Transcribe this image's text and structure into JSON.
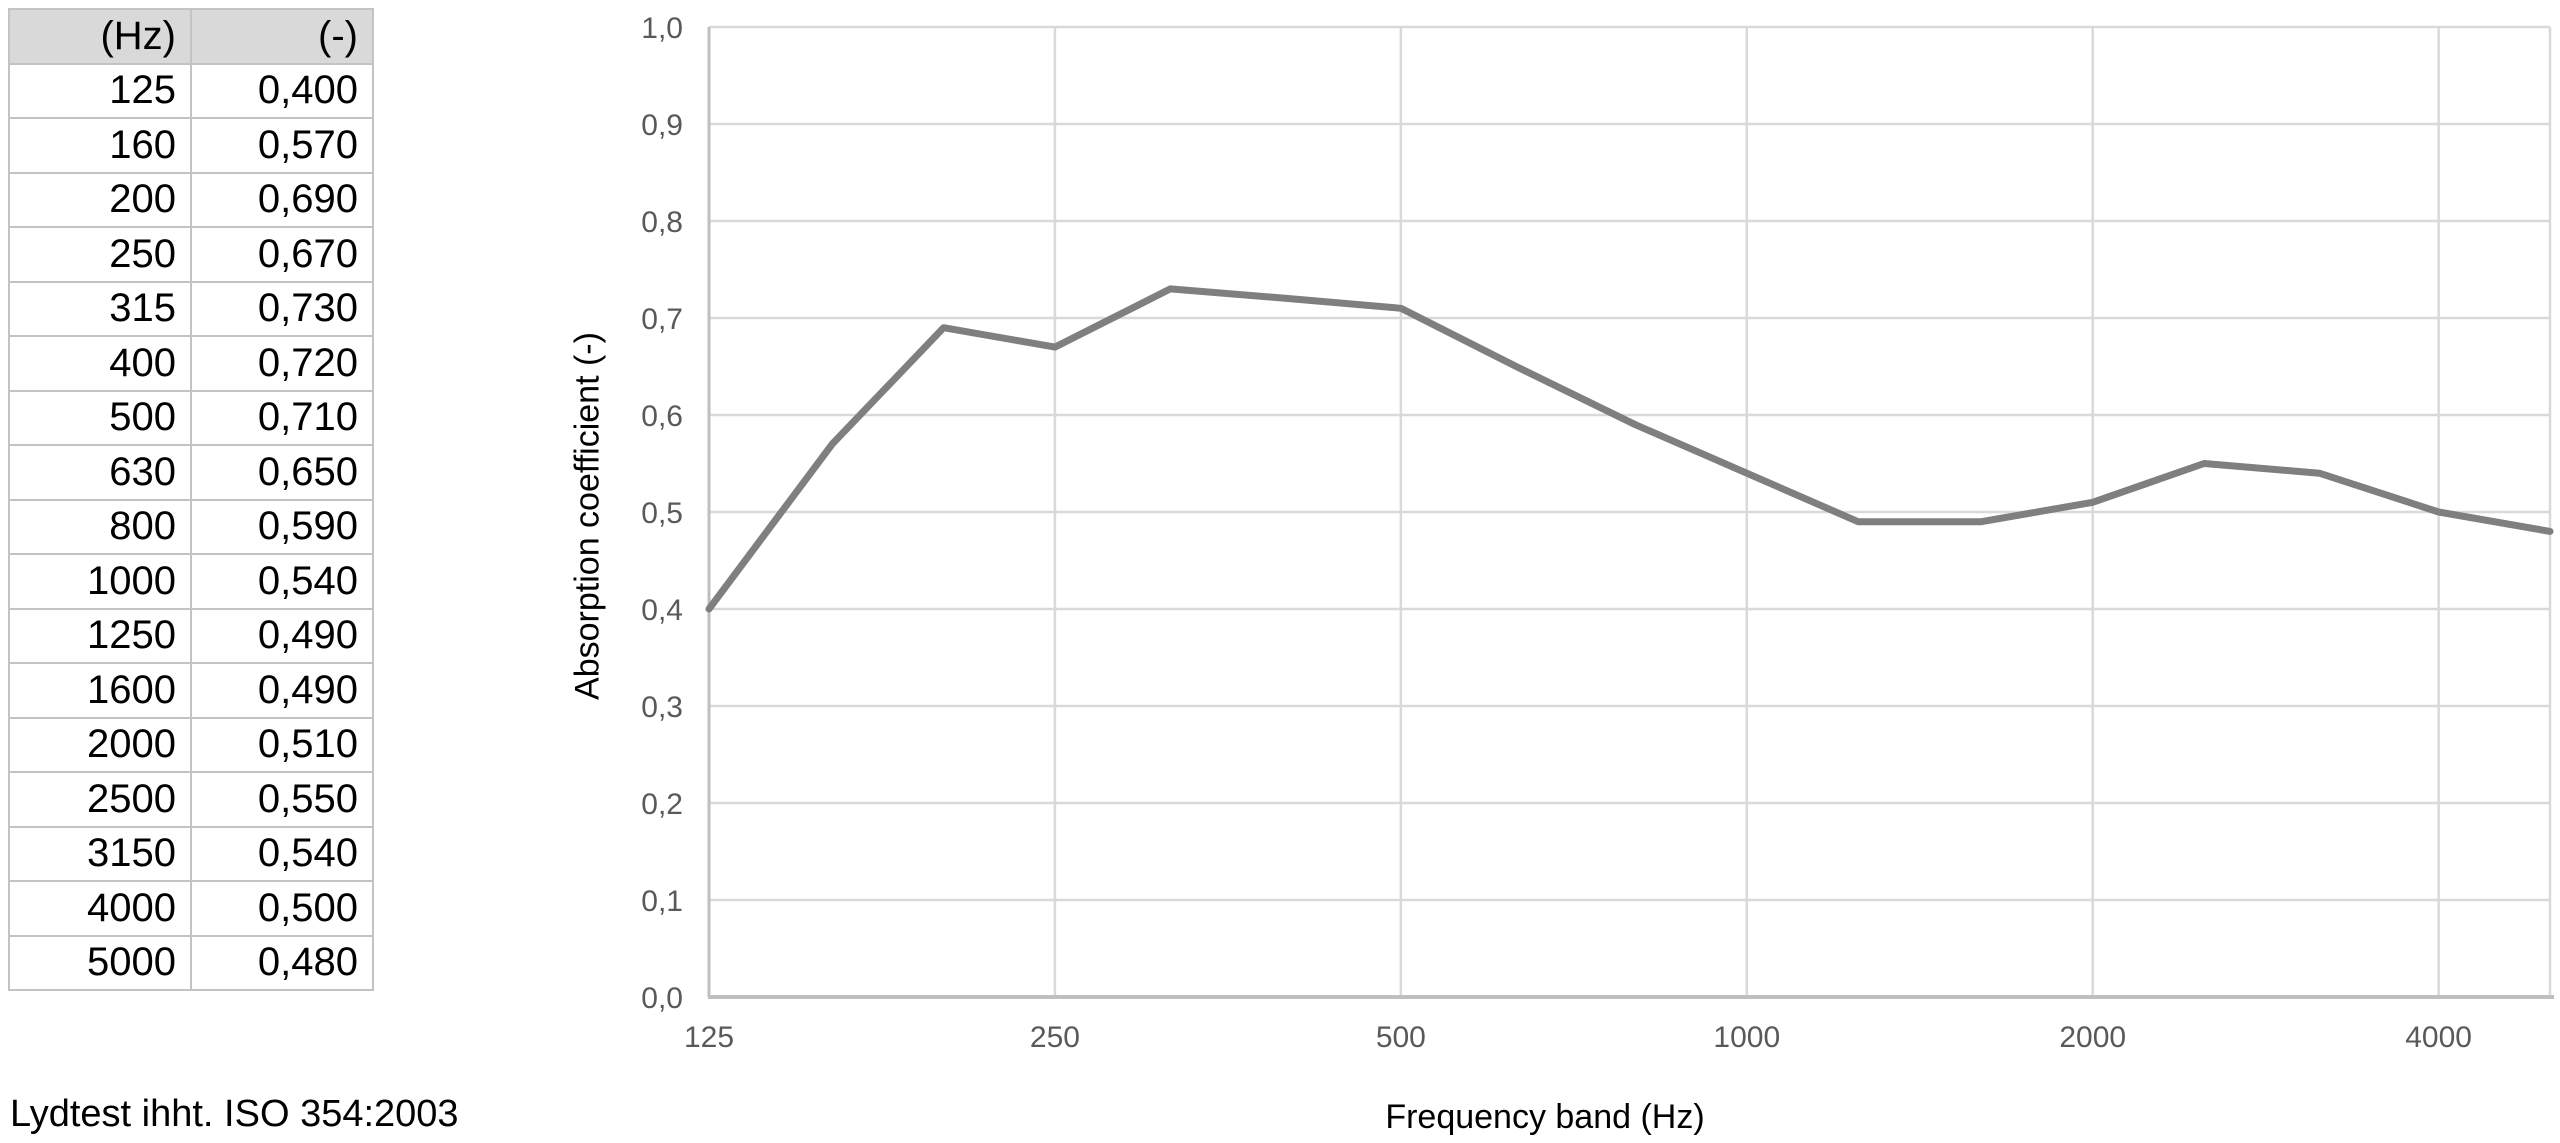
{
  "note": "Lydtest ihht. ISO 354:2003",
  "table": {
    "headers": [
      "(Hz)",
      "(-)"
    ],
    "rows": [
      [
        "125",
        "0,400"
      ],
      [
        "160",
        "0,570"
      ],
      [
        "200",
        "0,690"
      ],
      [
        "250",
        "0,670"
      ],
      [
        "315",
        "0,730"
      ],
      [
        "400",
        "0,720"
      ],
      [
        "500",
        "0,710"
      ],
      [
        "630",
        "0,650"
      ],
      [
        "800",
        "0,590"
      ],
      [
        "1000",
        "0,540"
      ],
      [
        "1250",
        "0,490"
      ],
      [
        "1600",
        "0,490"
      ],
      [
        "2000",
        "0,510"
      ],
      [
        "2500",
        "0,550"
      ],
      [
        "3150",
        "0,540"
      ],
      [
        "4000",
        "0,500"
      ],
      [
        "5000",
        "0,480"
      ]
    ]
  },
  "chart_data": {
    "type": "line",
    "title": "",
    "xlabel": "Frequency band (Hz)",
    "ylabel": "Absorption coefficient (-)",
    "x": [
      125,
      160,
      200,
      250,
      315,
      400,
      500,
      630,
      800,
      1000,
      1250,
      1600,
      2000,
      2500,
      3150,
      4000,
      5000
    ],
    "values": [
      0.4,
      0.57,
      0.69,
      0.67,
      0.73,
      0.72,
      0.71,
      0.65,
      0.59,
      0.54,
      0.49,
      0.49,
      0.51,
      0.55,
      0.54,
      0.5,
      0.48
    ],
    "x_scale": "log",
    "xlim": [
      125,
      5000
    ],
    "ylim": [
      0.0,
      1.0
    ],
    "x_tick_labels": [
      "125",
      "250",
      "500",
      "1000",
      "2000",
      "4000"
    ],
    "x_tick_values": [
      125,
      250,
      500,
      1000,
      2000,
      4000
    ],
    "y_tick_labels": [
      "0,0",
      "0,1",
      "0,2",
      "0,3",
      "0,4",
      "0,5",
      "0,6",
      "0,7",
      "0,8",
      "0,9",
      "1,0"
    ],
    "y_tick_values": [
      0.0,
      0.1,
      0.2,
      0.3,
      0.4,
      0.5,
      0.6,
      0.7,
      0.8,
      0.9,
      1.0
    ],
    "grid": true,
    "legend": "none",
    "line_color": "#7f7f7f",
    "gridline_color": "#d9d9d9",
    "axis_line_color": "#bfbfbf",
    "tick_label_color": "#595959"
  }
}
